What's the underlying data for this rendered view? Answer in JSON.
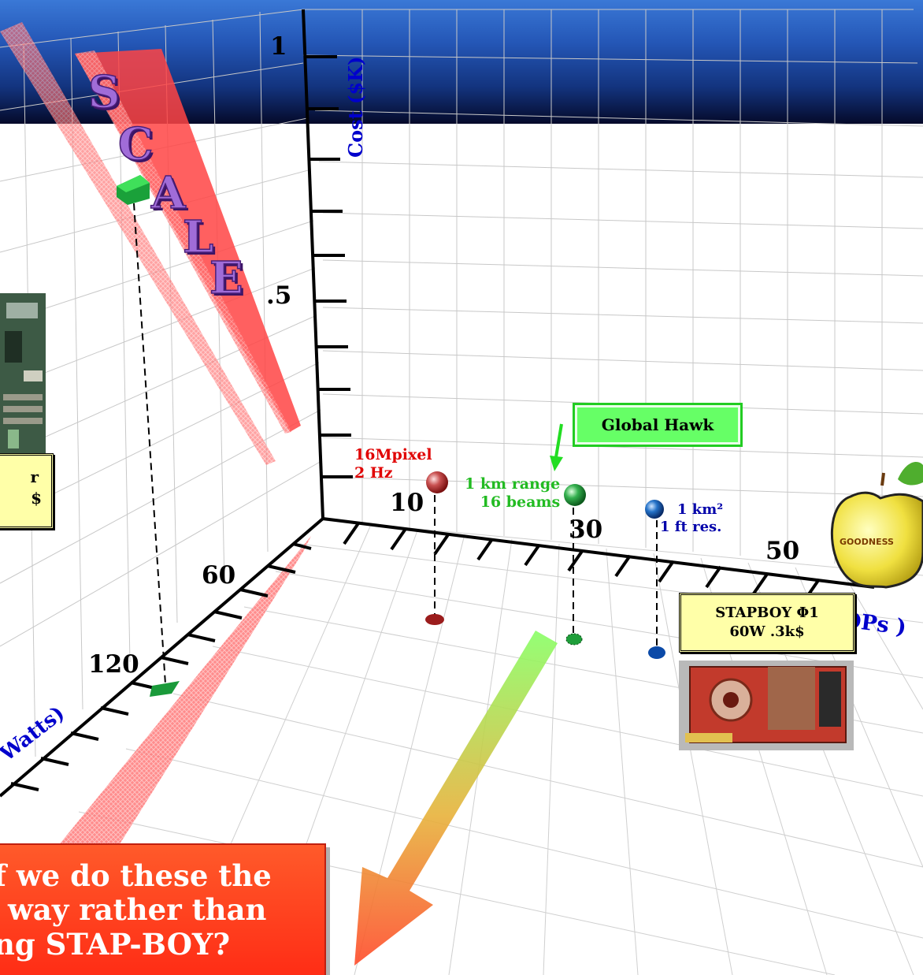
{
  "header": {
    "gradient_top": "#3a78d6",
    "gradient_bottom": "#050a2a"
  },
  "axes": {
    "cost_axis_label": "Cost ($K)",
    "cost_ticks": [
      "1",
      ".5"
    ],
    "speed_axis_label": "Speed (GFLOPs )",
    "speed_ticks": [
      "10",
      "30",
      "50"
    ],
    "power_axis_label": "Watts)",
    "power_ticks": [
      "60",
      "120"
    ],
    "axis_label_color": "#0000cc"
  },
  "scale_word": [
    "S",
    "C",
    "A",
    "L",
    "E"
  ],
  "data_points": [
    {
      "name": "16Mpixel-point",
      "label_lines": [
        "16Mpixel",
        "2 Hz"
      ],
      "color": "#9b1c1c"
    },
    {
      "name": "global-hawk-point",
      "label_lines": [
        "1 km range",
        "16 beams"
      ],
      "color": "#1f9e3a"
    },
    {
      "name": "1km2-point",
      "label_lines": [
        "1 km²",
        "1 ft res."
      ],
      "color": "#0b4aa8"
    }
  ],
  "callouts": {
    "global_hawk": "Global Hawk",
    "left_box_lines": [
      "r",
      "$"
    ],
    "stapboy_lines": [
      "STAPBOY  Φ1",
      "60W  .3k$"
    ]
  },
  "apple_label": "GOODNESS",
  "question_lines": [
    "f we do these the",
    "way rather than",
    "ng STAP-BOY?"
  ],
  "colors": {
    "scale_bar": "#ff4444",
    "green_arrow_top": "#88ff66",
    "red_arrow_bottom": "#ff4a2a",
    "question_bg": "#ff3a1e",
    "callout_yellow": "#ffffa8",
    "global_hawk_green": "#66ff66"
  }
}
